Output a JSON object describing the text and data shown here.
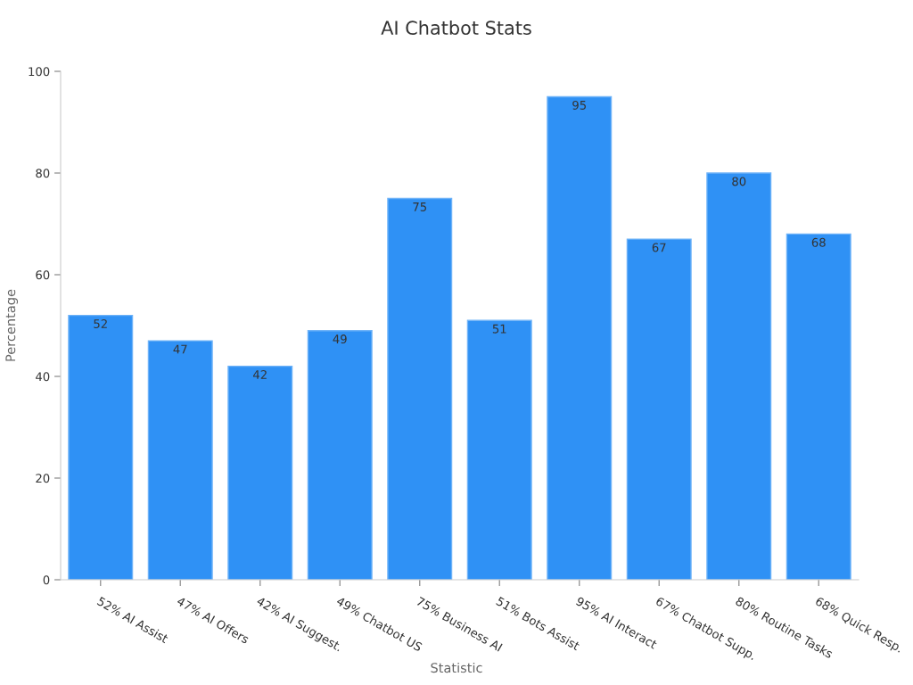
{
  "chart_data": {
    "type": "bar",
    "title": "AI Chatbot Stats",
    "xlabel": "Statistic",
    "ylabel": "Percentage",
    "categories": [
      "52% AI Assist",
      "47% AI Offers",
      "42% AI Suggest.",
      "49% Chatbot US",
      "75% Business AI",
      "51% Bots Assist",
      "95% AI Interact",
      "67% Chatbot Supp.",
      "80% Routine Tasks",
      "68% Quick Resp."
    ],
    "values": [
      52,
      47,
      42,
      49,
      75,
      51,
      95,
      67,
      80,
      68
    ],
    "color": "#2f91f5",
    "ylim": [
      0,
      100
    ],
    "yticks": [
      0,
      20,
      40,
      60,
      80,
      100
    ],
    "data_labels": true,
    "grid": false,
    "legend": false
  }
}
